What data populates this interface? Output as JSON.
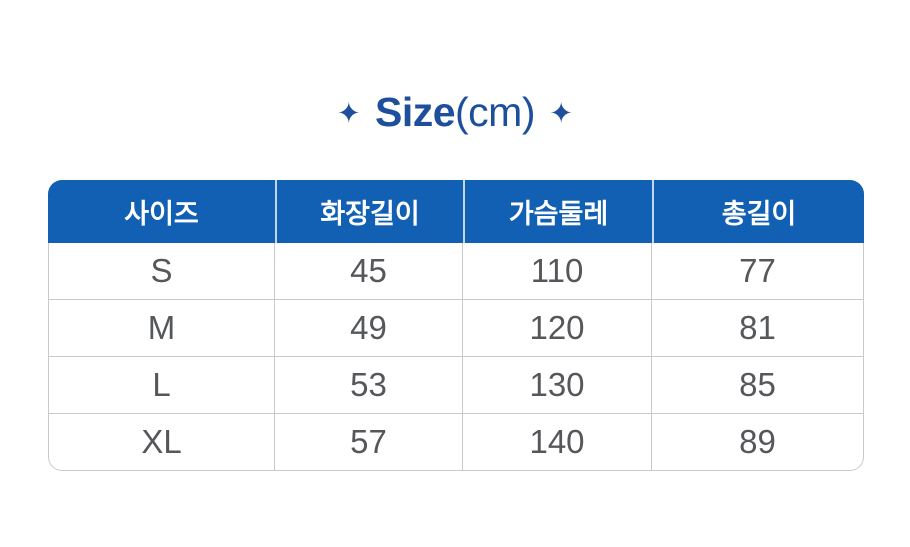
{
  "title": {
    "sparkle_left": "✦",
    "bold": "Size",
    "regular": "(cm)",
    "sparkle_right": "✦",
    "color": "#1E4F9C"
  },
  "table_style": {
    "header_bg": "#1160B3",
    "header_text_color": "#FFFFFF",
    "body_text_color": "#55575B",
    "border_color": "#C9C9C9"
  },
  "chart_data": {
    "type": "table",
    "title": "Size(cm)",
    "columns": [
      "사이즈",
      "화장길이",
      "가슴둘레",
      "총길이"
    ],
    "rows": [
      [
        "S",
        "45",
        "110",
        "77"
      ],
      [
        "M",
        "49",
        "120",
        "81"
      ],
      [
        "L",
        "53",
        "130",
        "85"
      ],
      [
        "XL",
        "57",
        "140",
        "89"
      ]
    ]
  }
}
